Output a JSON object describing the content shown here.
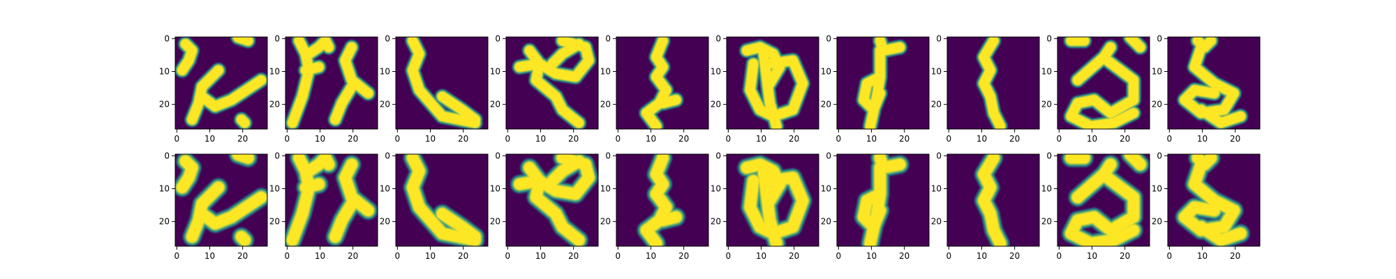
{
  "chart_data": {
    "type": "heatmap",
    "title": "",
    "layout": "2 rows x 10 columns of image panels",
    "colormap": "viridis",
    "colors": {
      "low": "#440154",
      "mid": "#21918c",
      "high": "#fde725"
    },
    "image_size": [
      28,
      28
    ],
    "xlim": [
      -0.5,
      27.5
    ],
    "ylim": [
      27.5,
      -0.5
    ],
    "grid": false,
    "legend": "none",
    "x_ticks": [
      0,
      10,
      20
    ],
    "x_tick_labels": [
      "0",
      "10",
      "20"
    ],
    "y_ticks": [
      0,
      10,
      20
    ],
    "y_tick_labels": [
      "0",
      "10",
      "20"
    ],
    "strokes": [
      [
        [
          [
            3,
            2
          ],
          [
            5,
            4
          ],
          [
            4,
            7
          ],
          [
            2,
            10
          ]
        ],
        [
          [
            19,
            0
          ],
          [
            22,
            1
          ]
        ],
        [
          [
            13,
            10
          ],
          [
            8,
            15
          ],
          [
            7,
            20
          ],
          [
            5,
            25
          ]
        ],
        [
          [
            8,
            18
          ],
          [
            12,
            21
          ],
          [
            17,
            19
          ],
          [
            26,
            13
          ]
        ],
        [
          [
            20,
            25
          ],
          [
            21,
            26
          ]
        ]
      ],
      [
        [
          [
            4,
            1
          ],
          [
            6,
            5
          ],
          [
            7,
            10
          ],
          [
            5,
            18
          ],
          [
            2,
            26
          ]
        ],
        [
          [
            7,
            5
          ],
          [
            10,
            3
          ],
          [
            12,
            1
          ],
          [
            13,
            3
          ]
        ],
        [
          [
            20,
            3
          ],
          [
            18,
            7
          ],
          [
            20,
            13
          ],
          [
            25,
            17
          ]
        ],
        [
          [
            20,
            15
          ],
          [
            17,
            20
          ],
          [
            15,
            25
          ]
        ],
        [
          [
            6,
            10
          ],
          [
            10,
            9
          ]
        ]
      ],
      [
        [
          [
            5,
            1
          ],
          [
            7,
            5
          ],
          [
            5,
            10
          ],
          [
            7,
            16
          ],
          [
            14,
            24
          ],
          [
            24,
            26
          ]
        ],
        [
          [
            14,
            18
          ],
          [
            20,
            22
          ],
          [
            24,
            25
          ]
        ]
      ],
      [
        [
          [
            7,
            4
          ],
          [
            10,
            8
          ],
          [
            9,
            13
          ],
          [
            15,
            18
          ],
          [
            17,
            22
          ],
          [
            22,
            26
          ]
        ],
        [
          [
            4,
            9
          ],
          [
            10,
            8
          ],
          [
            15,
            11
          ],
          [
            21,
            12
          ],
          [
            25,
            7
          ],
          [
            24,
            3
          ],
          [
            17,
            1
          ]
        ],
        [
          [
            14,
            8
          ],
          [
            17,
            5
          ],
          [
            22,
            2
          ]
        ]
      ],
      [
        [
          [
            14,
            1
          ],
          [
            12,
            6
          ],
          [
            14,
            9
          ],
          [
            12,
            12
          ],
          [
            15,
            16
          ],
          [
            13,
            20
          ],
          [
            9,
            23
          ],
          [
            12,
            27
          ]
        ],
        [
          [
            14,
            20
          ],
          [
            18,
            19
          ]
        ]
      ],
      [
        [
          [
            6,
            4
          ],
          [
            10,
            3
          ],
          [
            14,
            5
          ],
          [
            16,
            9
          ],
          [
            13,
            14
          ]
        ],
        [
          [
            8,
            8
          ],
          [
            7,
            16
          ],
          [
            10,
            22
          ],
          [
            14,
            24
          ],
          [
            20,
            22
          ],
          [
            23,
            14
          ],
          [
            20,
            7
          ],
          [
            13,
            8
          ]
        ],
        [
          [
            11,
            4
          ],
          [
            12,
            12
          ],
          [
            13,
            20
          ],
          [
            15,
            27
          ]
        ]
      ],
      [
        [
          [
            13,
            1
          ],
          [
            14,
            4
          ],
          [
            19,
            3
          ]
        ],
        [
          [
            13,
            4
          ],
          [
            13,
            12
          ],
          [
            12,
            18
          ],
          [
            10,
            27
          ]
        ],
        [
          [
            13,
            12
          ],
          [
            9,
            14
          ],
          [
            8,
            19
          ],
          [
            11,
            22
          ],
          [
            13,
            17
          ]
        ]
      ],
      [
        [
          [
            14,
            1
          ],
          [
            11,
            6
          ],
          [
            13,
            10
          ],
          [
            11,
            14
          ],
          [
            13,
            18
          ],
          [
            14,
            23
          ],
          [
            16,
            27
          ]
        ]
      ],
      [
        [
          [
            22,
            0
          ],
          [
            25,
            3
          ]
        ],
        [
          [
            4,
            1
          ],
          [
            8,
            1
          ]
        ],
        [
          [
            16,
            3
          ],
          [
            14,
            6
          ],
          [
            6,
            13
          ]
        ],
        [
          [
            15,
            7
          ],
          [
            23,
            13
          ],
          [
            23,
            19
          ],
          [
            16,
            23
          ],
          [
            11,
            19
          ],
          [
            6,
            20
          ],
          [
            4,
            24
          ],
          [
            10,
            27
          ],
          [
            17,
            26
          ],
          [
            23,
            23
          ]
        ]
      ],
      [
        [
          [
            9,
            1
          ],
          [
            11,
            3
          ],
          [
            13,
            1
          ]
        ],
        [
          [
            10,
            3
          ],
          [
            8,
            9
          ],
          [
            14,
            14
          ],
          [
            20,
            17
          ],
          [
            17,
            22
          ],
          [
            10,
            23
          ],
          [
            5,
            19
          ],
          [
            8,
            16
          ],
          [
            14,
            17
          ]
        ],
        [
          [
            10,
            22
          ],
          [
            16,
            26
          ],
          [
            22,
            24
          ]
        ]
      ]
    ]
  }
}
